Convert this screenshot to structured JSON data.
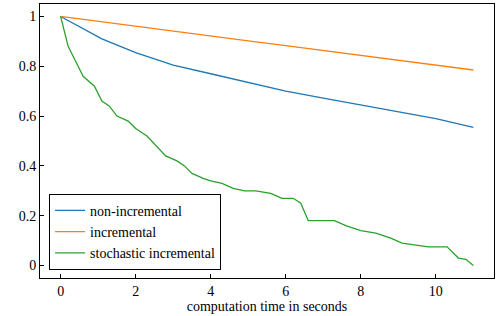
{
  "chart_data": {
    "type": "line",
    "x_label": "computation time in seconds",
    "xlim": [
      -0.55,
      11.55
    ],
    "xticks": [
      0,
      2,
      4,
      6,
      8,
      10
    ],
    "ylim": [
      -0.05,
      1.05
    ],
    "yticks": [
      0,
      0.2,
      0.4,
      0.6,
      0.8,
      1
    ],
    "grid": false,
    "legend": "lower left",
    "series": [
      {
        "name": "non-incremental",
        "color": "#1f77b4",
        "x": [
          0,
          1.1,
          2,
          3,
          4,
          5,
          6,
          7,
          8,
          9,
          10,
          11
        ],
        "values": [
          1.0,
          0.91,
          0.855,
          0.805,
          0.77,
          0.735,
          0.7,
          0.672,
          0.645,
          0.618,
          0.59,
          0.555
        ]
      },
      {
        "name": "incremental",
        "color": "#ff7f0e",
        "x": [
          0,
          1,
          2,
          3,
          4,
          5,
          6,
          7,
          8,
          9,
          10,
          11
        ],
        "values": [
          1.0,
          0.98,
          0.961,
          0.941,
          0.922,
          0.902,
          0.883,
          0.863,
          0.844,
          0.824,
          0.805,
          0.785
        ]
      },
      {
        "name": "stochastic incremental",
        "color": "#2ca02c",
        "x": [
          0,
          0.2,
          0.4,
          0.6,
          0.9,
          1.1,
          1.3,
          1.5,
          1.8,
          2.0,
          2.3,
          2.6,
          2.8,
          3.1,
          3.3,
          3.5,
          3.8,
          4.0,
          4.3,
          4.6,
          4.9,
          5.2,
          5.6,
          5.9,
          6.2,
          6.4,
          6.6,
          7.0,
          7.3,
          7.6,
          8.0,
          8.4,
          8.8,
          9.1,
          9.5,
          9.8,
          10.3,
          10.6,
          10.8,
          11.0
        ],
        "values": [
          1.0,
          0.88,
          0.82,
          0.76,
          0.72,
          0.66,
          0.64,
          0.6,
          0.58,
          0.55,
          0.52,
          0.47,
          0.44,
          0.42,
          0.4,
          0.37,
          0.35,
          0.34,
          0.33,
          0.31,
          0.3,
          0.3,
          0.29,
          0.27,
          0.27,
          0.25,
          0.18,
          0.18,
          0.18,
          0.16,
          0.14,
          0.13,
          0.11,
          0.09,
          0.08,
          0.075,
          0.075,
          0.03,
          0.025,
          0.0
        ]
      }
    ]
  }
}
